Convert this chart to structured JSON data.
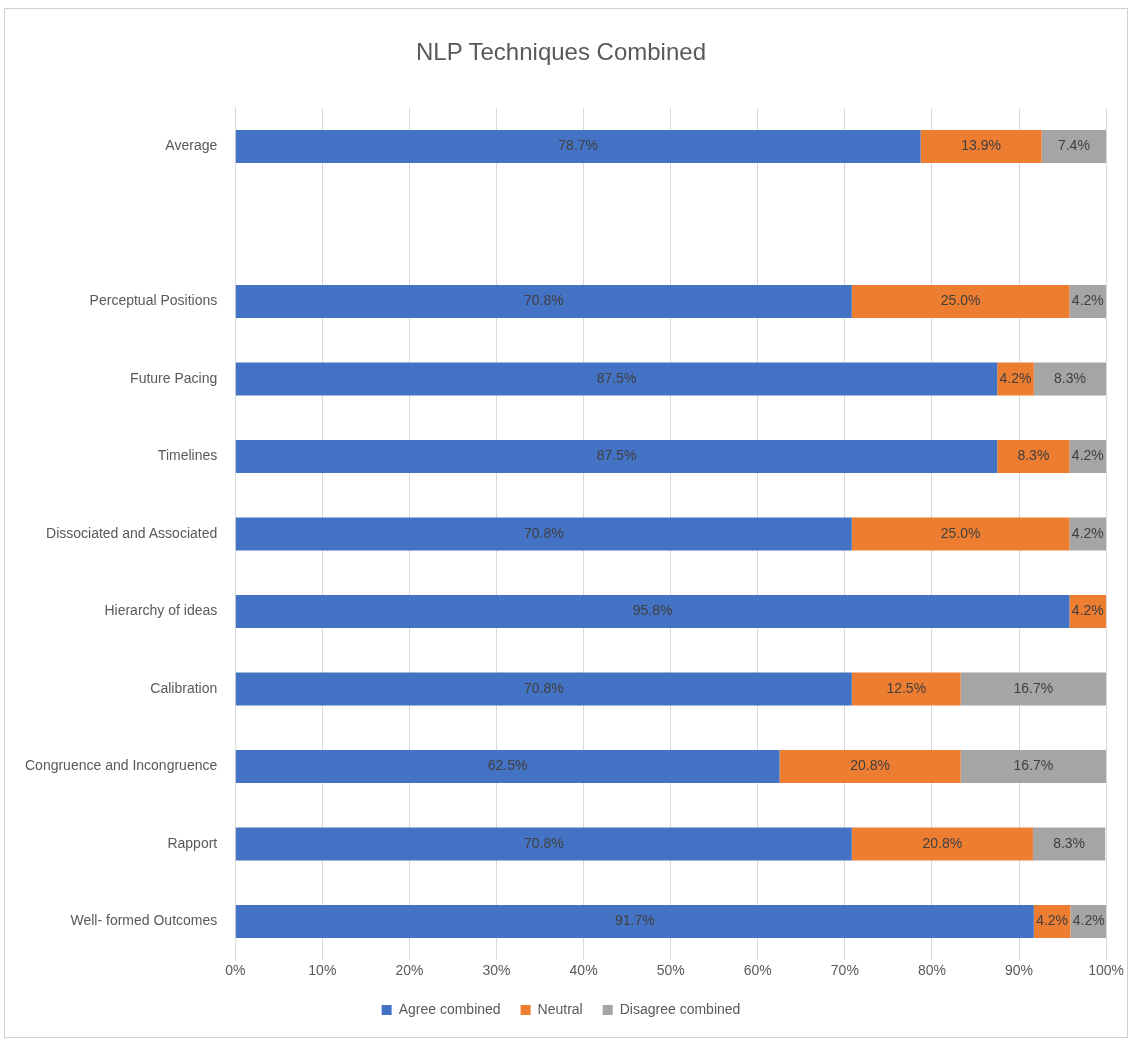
{
  "chart_data": {
    "type": "bar",
    "orientation": "horizontal",
    "stacked": true,
    "title": "NLP Techniques Combined",
    "categories": [
      "Average",
      null,
      "Perceptual Positions",
      "Future Pacing",
      "Timelines",
      "Dissociated and Associated",
      "Hierarchy of ideas",
      "Calibration",
      "Congruence and Incongruence",
      "Rapport",
      "Well- formed Outcomes"
    ],
    "series": [
      {
        "name": "Agree combined",
        "color": "#4472c4",
        "values": [
          78.7,
          null,
          70.8,
          87.5,
          87.5,
          70.8,
          95.8,
          70.8,
          62.5,
          70.8,
          91.7
        ],
        "value_labels": [
          "78.7%",
          null,
          "70.8%",
          "87.5%",
          "87.5%",
          "70.8%",
          "95.8%",
          "70.8%",
          "62.5%",
          "70.8%",
          "91.7%"
        ]
      },
      {
        "name": "Neutral",
        "color": "#ed7d31",
        "values": [
          13.9,
          null,
          25.0,
          4.2,
          8.3,
          25.0,
          4.2,
          12.5,
          20.8,
          20.8,
          4.2
        ],
        "value_labels": [
          "13.9%",
          null,
          "25.0%",
          "4.2%",
          "8.3%",
          "25.0%",
          "4.2%",
          "12.5%",
          "20.8%",
          "20.8%",
          "4.2%"
        ]
      },
      {
        "name": "Disagree combined",
        "color": "#a5a5a5",
        "values": [
          7.4,
          null,
          4.2,
          8.3,
          4.2,
          4.2,
          null,
          16.7,
          16.7,
          8.3,
          4.2
        ],
        "value_labels": [
          "7.4%",
          null,
          "4.2%",
          "8.3%",
          "4.2%",
          "4.2%",
          null,
          "16.7%",
          "16.7%",
          "8.3%",
          "4.2%"
        ]
      }
    ],
    "xlim": [
      0,
      100
    ],
    "xticks": [
      {
        "value": 0,
        "label": "0%"
      },
      {
        "value": 10,
        "label": "10%"
      },
      {
        "value": 20,
        "label": "20%"
      },
      {
        "value": 30,
        "label": "30%"
      },
      {
        "value": 40,
        "label": "40%"
      },
      {
        "value": 50,
        "label": "50%"
      },
      {
        "value": 60,
        "label": "60%"
      },
      {
        "value": 70,
        "label": "70%"
      },
      {
        "value": 80,
        "label": "80%"
      },
      {
        "value": 90,
        "label": "90%"
      },
      {
        "value": 100,
        "label": "100%"
      }
    ],
    "grid": "x",
    "legend": "bottom"
  }
}
